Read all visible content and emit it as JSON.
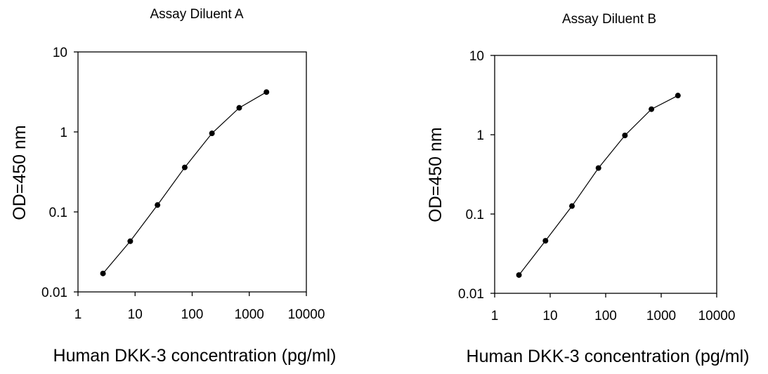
{
  "chart_data": [
    {
      "type": "line",
      "title": "Assay Diluent A",
      "xlabel": "Human DKK-3 concentration (pg/ml)",
      "ylabel": "OD=450 nm",
      "xscale": "log",
      "yscale": "log",
      "xlim": [
        1,
        10000
      ],
      "ylim": [
        0.01,
        10
      ],
      "xticks": [
        "1",
        "10",
        "100",
        "1000",
        "10000"
      ],
      "yticks": [
        "0.01",
        "0.1",
        "1",
        "10"
      ],
      "grid": false,
      "legend": "none",
      "marker": "filled-circle",
      "color": "#000000",
      "series": [
        {
          "x": [
            2.74,
            8.23,
            24.7,
            74.1,
            222,
            667,
            2000
          ],
          "y": [
            0.017,
            0.043,
            0.122,
            0.36,
            0.96,
            2.0,
            3.15
          ]
        }
      ]
    },
    {
      "type": "line",
      "title": "Assay Diluent B",
      "xlabel": "Human DKK-3 concentration (pg/ml)",
      "ylabel": "OD=450 nm",
      "xscale": "log",
      "yscale": "log",
      "xlim": [
        1,
        10000
      ],
      "ylim": [
        0.01,
        10
      ],
      "xticks": [
        "1",
        "10",
        "100",
        "1000",
        "10000"
      ],
      "yticks": [
        "0.01",
        "0.1",
        "1",
        "10"
      ],
      "grid": false,
      "legend": "none",
      "marker": "filled-circle",
      "color": "#000000",
      "series": [
        {
          "x": [
            2.74,
            8.23,
            24.7,
            74.1,
            222,
            667,
            2000
          ],
          "y": [
            0.017,
            0.046,
            0.126,
            0.38,
            0.98,
            2.1,
            3.12
          ]
        }
      ]
    }
  ]
}
